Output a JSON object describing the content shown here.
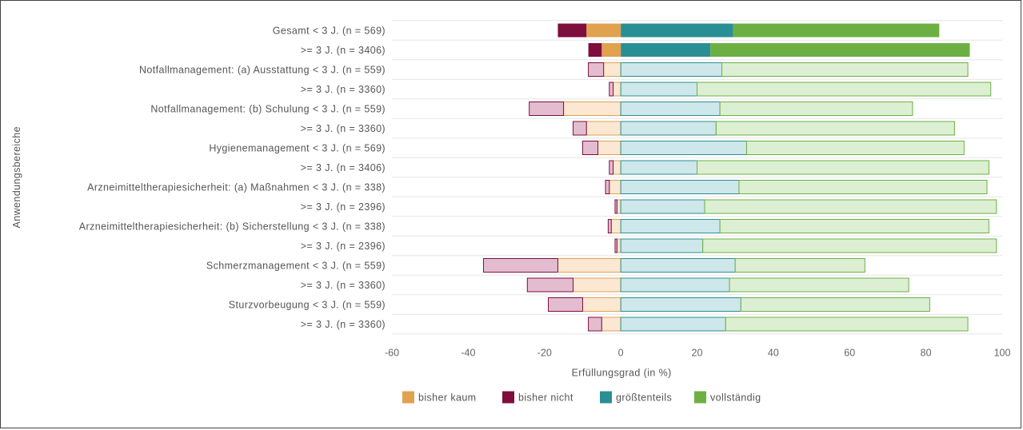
{
  "chart_data": {
    "type": "bar",
    "orientation": "horizontal",
    "stacked": "diverging",
    "categories": [
      "Gesamt < 3 J. (n = 569)",
      ">= 3 J. (n = 3406)",
      "Notfallmanagement: (a) Ausstattung < 3 J. (n = 559)",
      ">= 3 J. (n = 3360)",
      "Notfallmanagement: (b) Schulung < 3 J. (n = 559)",
      ">= 3 J. (n = 3360)",
      "Hygienemanagement < 3 J. (n = 569)",
      ">= 3 J. (n = 3406)",
      "Arzneimitteltherapiesicherheit: (a) Maßnahmen < 3 J. (n = 338)",
      ">= 3 J. (n = 2396)",
      "Arzneimitteltherapiesicherheit: (b) Sicherstellung < 3 J. (n = 338)",
      ">= 3 J. (n = 2396)",
      "Schmerzmanagement < 3 J. (n = 559)",
      ">= 3 J. (n = 3360)",
      "Sturzvorbeugung < 3 J. (n = 559)",
      ">= 3 J. (n = 3360)"
    ],
    "highlighted_rows": [
      0,
      1
    ],
    "series": [
      {
        "name": "bisher kaum",
        "side": "negative",
        "color": "#e0a24e",
        "light_color": "#fce8d2",
        "values": [
          9,
          5,
          4.5,
          2,
          15,
          9,
          6,
          2,
          3,
          1,
          2.5,
          1,
          16.5,
          12.5,
          10,
          5
        ]
      },
      {
        "name": "bisher nicht",
        "side": "negative",
        "color": "#7d0e3e",
        "light_color": "#e3bcd0",
        "values": [
          7.5,
          3.5,
          4,
          1,
          9,
          3.5,
          4,
          1,
          1,
          0.5,
          0.8,
          0.5,
          19.5,
          12,
          9,
          3.5
        ]
      },
      {
        "name": "größtenteils",
        "side": "positive",
        "color": "#2a8f94",
        "light_color": "#cde7ea",
        "values": [
          29.5,
          23.5,
          26.5,
          20,
          26,
          25,
          33,
          20,
          31,
          22,
          26,
          21.5,
          30,
          28.5,
          31.5,
          27.5
        ]
      },
      {
        "name": "vollständig",
        "side": "positive",
        "color": "#6cb043",
        "light_color": "#dcefd2",
        "values": [
          54,
          68,
          64.5,
          77,
          50.5,
          62.5,
          57,
          76.5,
          65,
          76.5,
          70.5,
          77,
          34,
          47,
          49.5,
          63.5
        ]
      }
    ],
    "x": {
      "min": -60,
      "max": 100,
      "ticks": [
        -60,
        -40,
        -20,
        0,
        20,
        40,
        60,
        80,
        100
      ]
    },
    "tick_labels": [
      "-60",
      "-40",
      "-20",
      "0",
      "20",
      "40",
      "60",
      "80",
      "100"
    ],
    "xlabel": "Erfüllungsgrad (in %)",
    "ylabel": "Anwendungsbereiche",
    "legend_position": "bottom",
    "legend_labels": [
      "bisher kaum",
      "bisher nicht",
      "größtenteils",
      "vollständig"
    ],
    "grid": {
      "horizontal": true,
      "vertical": false
    }
  }
}
